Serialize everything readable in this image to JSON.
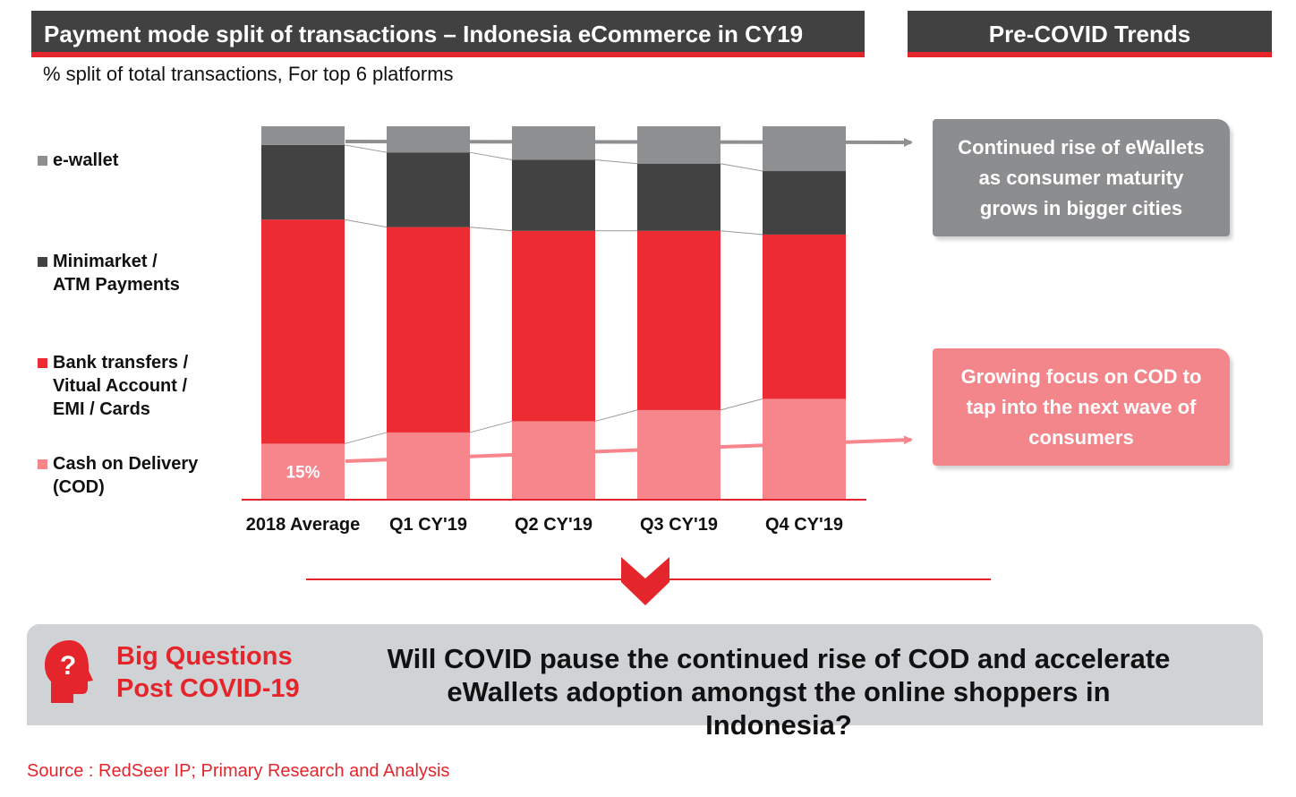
{
  "header": {
    "title": "Payment mode split of transactions – Indonesia eCommerce in CY19",
    "side_title": "Pre-COVID Trends"
  },
  "subtitle": "% split of total transactions, For top 6 platforms",
  "legend": [
    {
      "label": "e-wallet",
      "color": "#8e8f91"
    },
    {
      "label": "Minimarket /\nATM Payments",
      "color": "#414241"
    },
    {
      "label": "Bank transfers /\nVitual Account /\nEMI / Cards",
      "color": "#ec2b33"
    },
    {
      "label": "Cash on Delivery\n(COD)",
      "color": "#f7868c"
    }
  ],
  "chart_data": {
    "type": "bar",
    "stacked": true,
    "normalized": true,
    "categories": [
      "2018 Average",
      "Q1 CY'19",
      "Q2 CY'19",
      "Q3 CY'19",
      "Q4 CY'19"
    ],
    "series": [
      {
        "name": "Cash on Delivery (COD)",
        "color": "#f7868c",
        "values": [
          15,
          18,
          21,
          24,
          27
        ]
      },
      {
        "name": "Bank transfers / Vitual Account / EMI / Cards",
        "color": "#ec2b33",
        "values": [
          60,
          55,
          51,
          48,
          44
        ]
      },
      {
        "name": "Minimarket / ATM Payments",
        "color": "#414241",
        "values": [
          20,
          20,
          19,
          18,
          17
        ]
      },
      {
        "name": "e-wallet",
        "color": "#8e8f91",
        "values": [
          5,
          7,
          9,
          10,
          12
        ]
      }
    ],
    "data_labels": [
      {
        "series": 0,
        "index": 0,
        "text": "15%"
      }
    ],
    "ylim": [
      0,
      100
    ]
  },
  "callouts": {
    "ewallet": "Continued rise of eWallets\nas consumer maturity\ngrows in bigger cities",
    "cod": "Growing focus on COD to\ntap into the next wave of\nconsumers"
  },
  "question": {
    "title": "Big Questions\nPost COVID-19",
    "text": "Will COVID pause the continued rise of COD and accelerate\neWallets adoption amongst the online shoppers in Indonesia?",
    "icon": "head-question-icon"
  },
  "source": "Source : RedSeer IP; Primary Research and Analysis"
}
